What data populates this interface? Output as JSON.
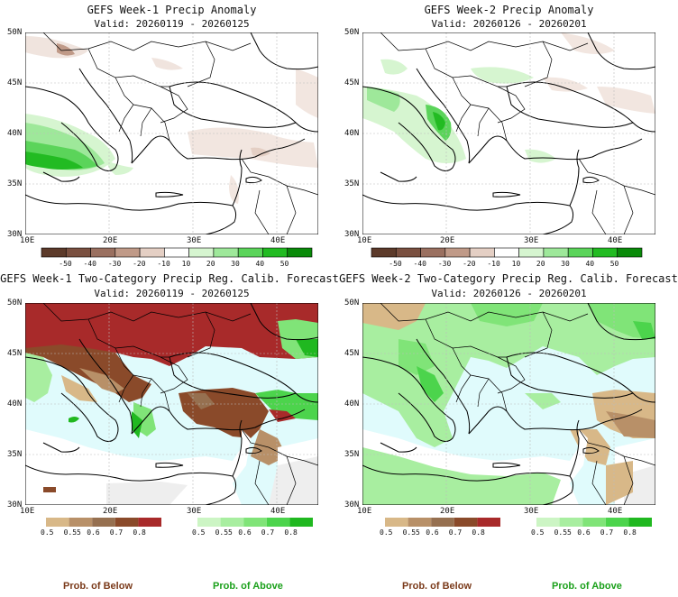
{
  "panels": {
    "w1_anom": {
      "title": "GEFS Week-1 Precip Anomaly",
      "valid": "Valid: 20260119 - 20260125"
    },
    "w2_anom": {
      "title": "GEFS Week-2 Precip Anomaly",
      "valid": "Valid: 20260126 - 20260201"
    },
    "w1_cat": {
      "title": "GEFS Week-1 Two-Category Precip Reg. Calib. Forecast",
      "valid": "Valid: 20260119 - 20260125"
    },
    "w2_cat": {
      "title": "GEFS Week-2 Two-Category Precip Reg. Calib. Forecast",
      "valid": "Valid: 20260126 - 20260201"
    }
  },
  "lat_labels": [
    "50N",
    "45N",
    "40N",
    "35N",
    "30N"
  ],
  "lon_labels": [
    "10E",
    "20E",
    "30E",
    "40E"
  ],
  "anom_colorbar": {
    "ticks": [
      "-50",
      "-40",
      "-30",
      "-20",
      "-10",
      "10",
      "20",
      "30",
      "40",
      "50"
    ],
    "colors": [
      "#5c3a2a",
      "#7a5040",
      "#9a7060",
      "#c09a88",
      "#e4cfc4",
      "#ffffff",
      "#d6f5d0",
      "#9ee89a",
      "#5bd45a",
      "#22bb22",
      "#0a8a0a"
    ]
  },
  "cat_colorbar_below": {
    "ticks": [
      "0.5",
      "0.55",
      "0.6",
      "0.7",
      "0.8"
    ],
    "colors": [
      "#d8b888",
      "#b89068",
      "#967050",
      "#8a4a2a",
      "#a82a2a"
    ]
  },
  "cat_colorbar_above": {
    "ticks": [
      "0.5",
      "0.55",
      "0.6",
      "0.7",
      "0.8"
    ],
    "colors": [
      "#ccf5c4",
      "#a8eea0",
      "#80e478",
      "#4cd44c",
      "#20b820"
    ]
  },
  "legend": {
    "below": "Prob. of Below",
    "above": "Prob. of Above",
    "below_color": "#7a3a1a",
    "above_color": "#1aa01a"
  }
}
